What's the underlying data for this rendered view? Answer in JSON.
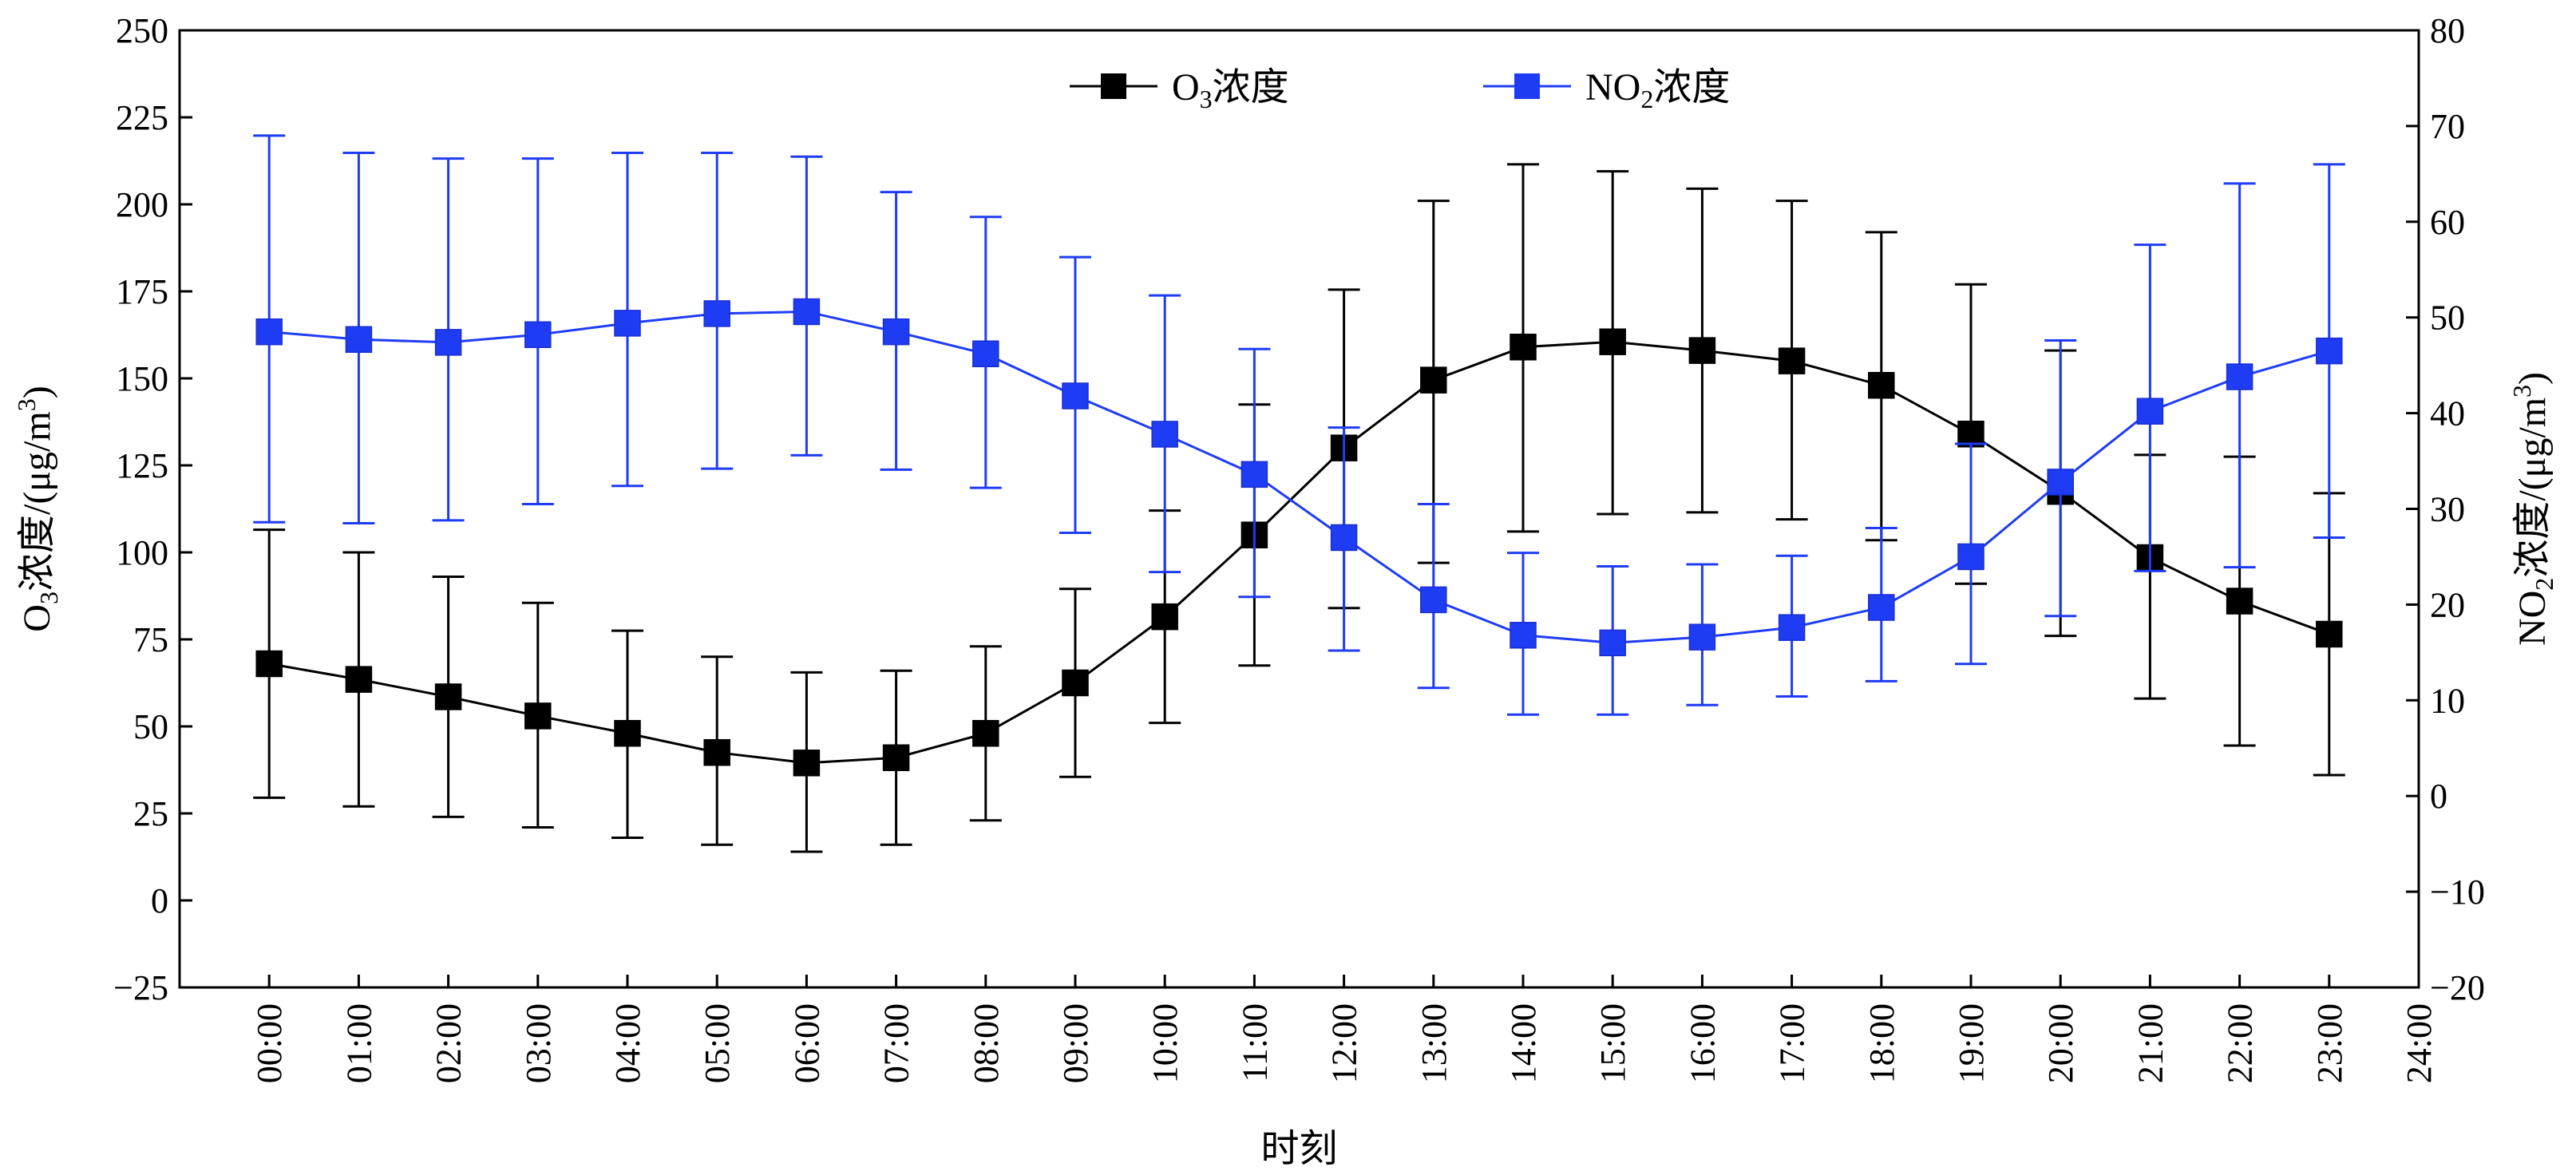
{
  "chart_data": {
    "type": "line",
    "x_tick_labels": [
      "00:00",
      "01:00",
      "02:00",
      "03:00",
      "04:00",
      "05:00",
      "06:00",
      "07:00",
      "08:00",
      "09:00",
      "10:00",
      "11:00",
      "12:00",
      "13:00",
      "14:00",
      "15:00",
      "16:00",
      "17:00",
      "18:00",
      "19:00",
      "20:00",
      "21:00",
      "22:00",
      "23:00",
      "24:00"
    ],
    "x_hours": [
      0,
      1,
      2,
      3,
      4,
      5,
      6,
      7,
      8,
      9,
      10,
      11,
      12,
      13,
      14,
      15,
      16,
      17,
      18,
      19,
      20,
      21,
      22,
      23
    ],
    "xlim": [
      -1,
      24
    ],
    "xlabel": "时刻",
    "y_left": {
      "label_main": "O",
      "label_sub": "3",
      "label_rest": "浓度/(μg/m",
      "label_sup": "3",
      "label_end": ")",
      "ylim": [
        -25,
        250
      ],
      "ticks": [
        -25,
        0,
        25,
        50,
        75,
        100,
        125,
        150,
        175,
        200,
        225,
        250
      ],
      "tick_labels": [
        "−25",
        "0",
        "25",
        "50",
        "75",
        "100",
        "125",
        "150",
        "175",
        "200",
        "225",
        "250"
      ]
    },
    "y_right": {
      "label_main": "NO",
      "label_sub": "2",
      "label_rest": "浓度/(μg/m",
      "label_sup": "3",
      "label_end": ")",
      "ylim": [
        -20,
        80
      ],
      "ticks": [
        -20,
        -10,
        0,
        10,
        20,
        30,
        40,
        50,
        60,
        70,
        80
      ],
      "tick_labels": [
        "−20",
        "−10",
        "0",
        "10",
        "20",
        "30",
        "40",
        "50",
        "60",
        "70",
        "80"
      ]
    },
    "legend_position": "top-center",
    "series": [
      {
        "name_main": "O",
        "name_sub": "3",
        "name_rest": "浓度",
        "axis": "left",
        "color": "#000000",
        "marker": "square",
        "values": [
          68,
          63.5,
          58.5,
          53,
          48,
          42.5,
          39.5,
          41,
          48,
          62.5,
          81.5,
          105,
          130,
          149.5,
          159,
          160.5,
          158,
          155,
          148,
          134,
          117.5,
          98.5,
          86,
          76.5
        ],
        "upper": [
          106.5,
          100,
          93,
          85.5,
          77.5,
          70,
          65.5,
          66,
          73,
          89.5,
          112,
          142.5,
          175.5,
          201,
          211.5,
          209.5,
          204.5,
          201,
          192,
          177,
          158,
          128,
          127.5,
          117
        ],
        "lower": [
          29.5,
          27,
          24,
          21,
          18,
          16,
          14,
          16,
          23,
          35.5,
          51,
          67.5,
          84,
          97,
          106,
          111,
          111.5,
          109.5,
          103.5,
          91,
          76,
          58,
          44.5,
          36
        ]
      },
      {
        "name_main": "NO",
        "name_sub": "2",
        "name_rest": "浓度",
        "axis": "right",
        "color": "#1f3cf5",
        "marker": "square",
        "values": [
          48.5,
          47.7,
          47.4,
          48.2,
          49.4,
          50.4,
          50.6,
          48.5,
          46.2,
          41.8,
          37.8,
          33.6,
          27,
          20.5,
          16.8,
          16,
          16.6,
          17.6,
          19.7,
          25,
          32.8,
          40.2,
          43.8,
          46.5
        ],
        "upper": [
          69,
          67.2,
          66.6,
          66.6,
          67.2,
          67.2,
          66.8,
          63.1,
          60.5,
          56.3,
          52.3,
          46.7,
          38.5,
          30.5,
          25.4,
          24,
          24.2,
          25.1,
          28,
          36.8,
          47.6,
          57.6,
          64,
          66
        ],
        "lower": [
          28.6,
          28.5,
          28.8,
          30.5,
          32.4,
          34.2,
          35.6,
          34.1,
          32.2,
          27.5,
          23.4,
          20.8,
          15.2,
          11.3,
          8.5,
          8.5,
          9.5,
          10.4,
          12,
          13.8,
          18.8,
          23.5,
          23.9,
          27
        ]
      }
    ]
  }
}
